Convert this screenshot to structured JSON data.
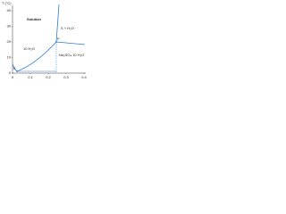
{
  "axes": {
    "y_title": "T (°C)",
    "y_ticks": [
      "40",
      "30",
      "20",
      "10",
      "0"
    ],
    "x_ticks": [
      "0",
      "0.1",
      "0.2",
      "0.3",
      "0.4"
    ]
  },
  "regions": [
    "Solution",
    "S + H₂O",
    "10 H₂O",
    "Na₂SO₄ 10 H₂O"
  ],
  "points": [
    "E",
    "P"
  ]
}
